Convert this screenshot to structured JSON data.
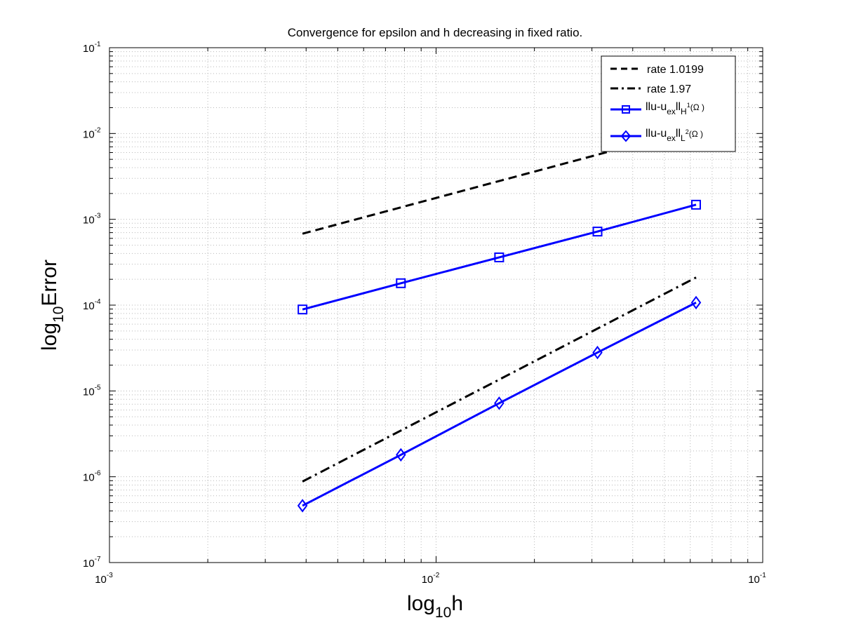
{
  "chart_data": {
    "type": "line",
    "title": "Convergence for epsilon and h decreasing in fixed ratio.",
    "xlabel": {
      "base": "log",
      "sub": "10",
      "rest": "h"
    },
    "ylabel": {
      "base": "log",
      "sub": "10",
      "rest": "Error"
    },
    "x_scale": "log",
    "y_scale": "log",
    "xlim": [
      0.001,
      0.1
    ],
    "ylim": [
      1e-07,
      0.1
    ],
    "grid": true,
    "legend_position": "top-right",
    "x_ticks": [
      {
        "value": 0.001,
        "mantissa": "10",
        "exp": "-3"
      },
      {
        "value": 0.01,
        "mantissa": "10",
        "exp": "-2"
      },
      {
        "value": 0.1,
        "mantissa": "10",
        "exp": "-1"
      }
    ],
    "y_ticks": [
      {
        "value": 1e-07,
        "mantissa": "10",
        "exp": "-7"
      },
      {
        "value": 1e-06,
        "mantissa": "10",
        "exp": "-6"
      },
      {
        "value": 1e-05,
        "mantissa": "10",
        "exp": "-5"
      },
      {
        "value": 0.0001,
        "mantissa": "10",
        "exp": "-4"
      },
      {
        "value": 0.001,
        "mantissa": "10",
        "exp": "-3"
      },
      {
        "value": 0.01,
        "mantissa": "10",
        "exp": "-2"
      },
      {
        "value": 0.1,
        "mantissa": "10",
        "exp": "-1"
      }
    ],
    "series": [
      {
        "name": "rate 1.0199",
        "style": "dashed",
        "color": "#000000",
        "marker": "none",
        "x": [
          0.0039,
          0.0625
        ],
        "y": [
          0.00068,
          0.0115
        ]
      },
      {
        "name": "rate 1.97",
        "style": "dashdot",
        "color": "#000000",
        "marker": "none",
        "x": [
          0.0039,
          0.0625
        ],
        "y": [
          8.8e-07,
          0.00021
        ]
      },
      {
        "name": "||u-u_ex||_H1(Ω)",
        "legend_label": {
          "norm": "llu-u",
          "sub1": "ex",
          "mid": "ll",
          "sub2": "H",
          "sup": "1",
          "tail": "(Ω )"
        },
        "style": "solid",
        "color": "#0000ff",
        "marker": "square",
        "x": [
          0.0039,
          0.0078,
          0.0156,
          0.0312,
          0.0625
        ],
        "y": [
          8.9e-05,
          0.00018,
          0.00036,
          0.00072,
          0.00148
        ]
      },
      {
        "name": "||u-u_ex||_L2(Ω)",
        "legend_label": {
          "norm": "llu-u",
          "sub1": "ex",
          "mid": "ll",
          "sub2": "L",
          "sup": "2",
          "tail": "(Ω )"
        },
        "style": "solid",
        "color": "#0000ff",
        "marker": "diamond",
        "x": [
          0.0039,
          0.0078,
          0.0156,
          0.0312,
          0.0625
        ],
        "y": [
          4.6e-07,
          1.8e-06,
          7.2e-06,
          2.8e-05,
          0.000107
        ]
      }
    ]
  }
}
